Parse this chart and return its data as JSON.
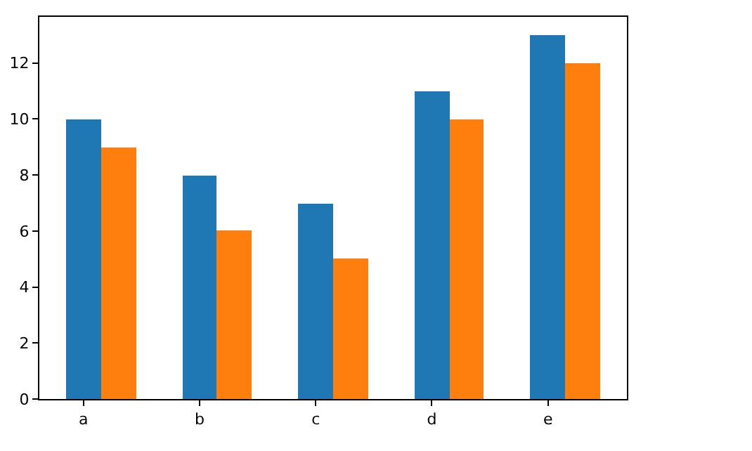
{
  "chart_data": {
    "type": "bar",
    "categories": [
      "a",
      "b",
      "c",
      "d",
      "e"
    ],
    "series": [
      {
        "color": "#1f77b4",
        "values": [
          10,
          8,
          7,
          11,
          13
        ]
      },
      {
        "color": "#ff7f0e",
        "values": [
          9,
          6,
          5,
          10,
          12
        ]
      }
    ],
    "ylim": [
      0,
      13.65
    ],
    "yticks": [
      0,
      2,
      4,
      6,
      8,
      10,
      12
    ]
  }
}
